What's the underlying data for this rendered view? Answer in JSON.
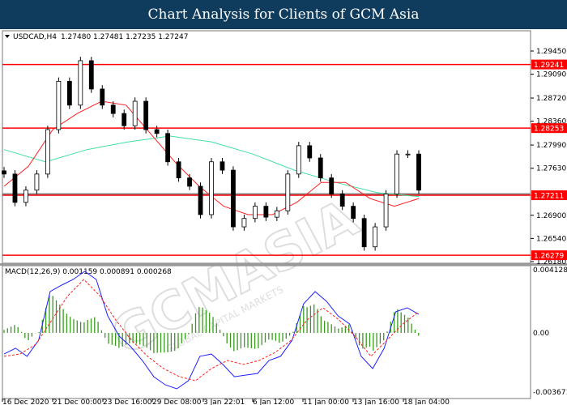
{
  "title": "Chart Analysis for Clients of GCM Asia",
  "watermark": {
    "main": "GCMASIA",
    "sub": "GLOBAL CAPITAL MARKETS"
  },
  "colors": {
    "candle": "#000000",
    "ma_fast": "#ff2020",
    "ma_slow": "#40e0a0",
    "hline": "#ff0000",
    "macd": "#2020ff",
    "signal": "#ff2020",
    "hist": "#3a9a20",
    "title_bg": "#0f3b5c"
  },
  "chart_data": [
    {
      "type": "candlestick",
      "title": "USDCAD,H4",
      "ohlc_readout": "1.27480 1.27481 1.27235 1.27247",
      "ylim": [
        1.2614,
        1.2975
      ],
      "y_ticks": [
        "1.29450",
        "1.29090",
        "1.28720",
        "1.28360",
        "1.27990",
        "1.27630",
        "1.26900",
        "1.26540",
        "1.26180"
      ],
      "y_tick_values": [
        1.2945,
        1.2909,
        1.2872,
        1.2836,
        1.2799,
        1.2763,
        1.269,
        1.2654,
        1.2618
      ],
      "horizontal_levels": [
        {
          "label": "1.29241",
          "value": 1.29241
        },
        {
          "label": "1.28253",
          "value": 1.28253
        },
        {
          "label": "1.27211",
          "value": 1.27211
        },
        {
          "label": "1.26279",
          "value": 1.26279
        }
      ],
      "closes": [
        1.2754,
        1.271,
        1.2729,
        1.2754,
        1.2823,
        1.2898,
        1.2861,
        1.293,
        1.2886,
        1.2861,
        1.2848,
        1.2829,
        1.2867,
        1.2823,
        1.2817,
        1.2773,
        1.2748,
        1.2735,
        1.2691,
        1.2773,
        1.276,
        1.2672,
        1.2685,
        1.2704,
        1.2687,
        1.2697,
        1.2754,
        1.2798,
        1.2779,
        1.2748,
        1.2723,
        1.2704,
        1.2685,
        1.2641,
        1.2672,
        1.2723,
        1.2785,
        1.2785,
        1.2729
      ],
      "ma_fast": [
        1.2735,
        1.2766,
        1.2823,
        1.2848,
        1.2867,
        1.2861,
        1.2817,
        1.2773,
        1.2735,
        1.2704,
        1.2691,
        1.2691,
        1.271,
        1.2741,
        1.2741,
        1.2716,
        1.2704,
        1.2716
      ],
      "ma_slow": [
        1.2792,
        1.2773,
        1.2792,
        1.2804,
        1.2813,
        1.2804,
        1.2785,
        1.276,
        1.2741,
        1.2725,
        1.2719
      ],
      "x_ticks": [
        "16 Dec 2020",
        "21 Dec 00:00",
        "23 Dec 16:00",
        "29 Dec 08:00",
        "3 Jan 22:01",
        "6 Jan 12:00",
        "11 Jan 00:00",
        "13 Jan 16:00",
        "18 Jan 04:00"
      ]
    },
    {
      "type": "line",
      "title": "MACD(12,26,9) 0.001159 0.000891 0.000268",
      "ylim": [
        -0.003671,
        0.004128
      ],
      "y_ticks": [
        "0.004128",
        "0.00",
        "-0.003671"
      ],
      "macd": [
        -0.00138,
        -0.001,
        -0.00153,
        -0.00048,
        0.0027,
        0.00312,
        0.00349,
        0.00402,
        0.00349,
        0.00111,
        -0.00021,
        -0.0009,
        -0.0018,
        -0.00286,
        -0.00339,
        -0.00365,
        -0.00312,
        -0.00153,
        -0.00138,
        -0.00206,
        -0.00286,
        -0.00275,
        -0.00265,
        -0.0018,
        -0.00153,
        -0.00048,
        0.0019,
        0.0027,
        0.00206,
        0.00111,
        0.00058,
        -0.00153,
        -0.00233,
        -0.001,
        0.00138,
        0.00164,
        0.00122
      ],
      "signal": [
        -0.00153,
        -0.00138,
        -0.00074,
        0.00085,
        0.00243,
        0.00349,
        0.00243,
        0.00085,
        -0.00048,
        -0.00153,
        -0.00233,
        -0.00286,
        -0.00312,
        -0.00233,
        -0.0018,
        -0.00206,
        -0.0018,
        -0.00127,
        -0.00048,
        0.00085,
        0.00164,
        0.00085,
        -0.00021,
        -0.00153,
        -0.00048,
        0.00058,
        0.00138
      ]
    }
  ]
}
